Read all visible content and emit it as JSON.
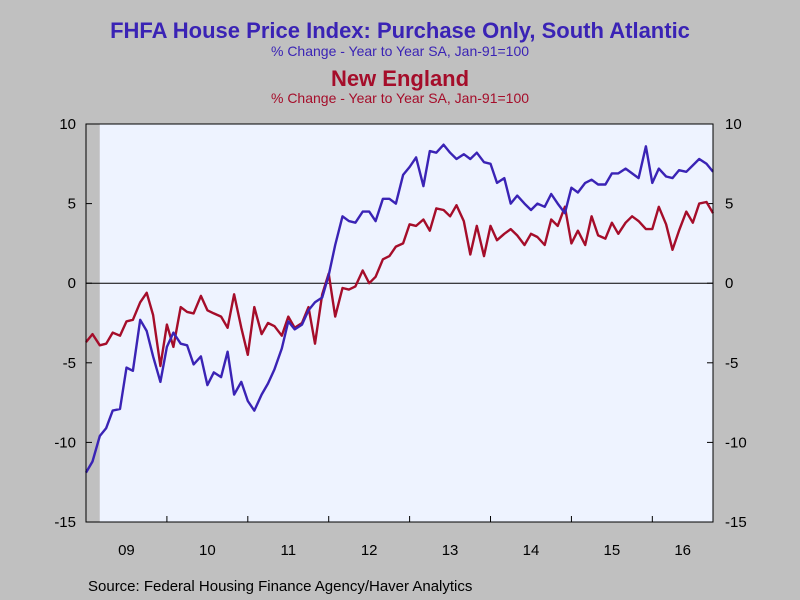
{
  "chart_data": {
    "type": "line",
    "title": "FHFA House Price Index: Purchase Only, South Atlantic",
    "subtitle": "% Change - Year to Year    SA, Jan-91=100",
    "title2": "New England",
    "subtitle2": "% Change - Year to Year    SA, Jan-91=100",
    "source": "Source:  Federal Housing Finance Agency/Haver Analytics",
    "xlabel": "",
    "ylabel": "",
    "ylim": [
      -15,
      10
    ],
    "yticks_left": [
      "10",
      "5",
      "0",
      "-5",
      "-10",
      "-15"
    ],
    "yticks_right": [
      "10",
      "5",
      "0",
      "-5",
      "-10",
      "-15"
    ],
    "ytick_values": [
      10,
      5,
      0,
      -5,
      -10,
      -15
    ],
    "x_tick_labels": [
      "09",
      "10",
      "11",
      "12",
      "13",
      "14",
      "15",
      "16"
    ],
    "x_tick_years": [
      2009,
      2010,
      2011,
      2012,
      2013,
      2014,
      2015,
      2016
    ],
    "xlim": [
      2009.0,
      2016.75
    ],
    "grid": false,
    "zero_line": true,
    "recession_shading": [
      [
        2009.0,
        2009.17
      ]
    ],
    "series": [
      {
        "name": "South Atlantic",
        "color": "#3a23b5",
        "x": [
          2009.0,
          2009.08,
          2009.17,
          2009.25,
          2009.33,
          2009.42,
          2009.5,
          2009.58,
          2009.67,
          2009.75,
          2009.83,
          2009.92,
          2010.0,
          2010.08,
          2010.17,
          2010.25,
          2010.33,
          2010.42,
          2010.5,
          2010.58,
          2010.67,
          2010.75,
          2010.83,
          2010.92,
          2011.0,
          2011.08,
          2011.17,
          2011.25,
          2011.33,
          2011.42,
          2011.5,
          2011.58,
          2011.67,
          2011.75,
          2011.83,
          2011.92,
          2012.0,
          2012.08,
          2012.17,
          2012.25,
          2012.33,
          2012.42,
          2012.5,
          2012.58,
          2012.67,
          2012.75,
          2012.83,
          2012.92,
          2013.0,
          2013.08,
          2013.17,
          2013.25,
          2013.33,
          2013.42,
          2013.5,
          2013.58,
          2013.67,
          2013.75,
          2013.83,
          2013.92,
          2014.0,
          2014.08,
          2014.17,
          2014.25,
          2014.33,
          2014.42,
          2014.5,
          2014.58,
          2014.67,
          2014.75,
          2014.83,
          2014.92,
          2015.0,
          2015.08,
          2015.17,
          2015.25,
          2015.33,
          2015.42,
          2015.5,
          2015.58,
          2015.67,
          2015.75,
          2015.83,
          2015.92,
          2016.0,
          2016.08,
          2016.17,
          2016.25,
          2016.33,
          2016.42,
          2016.5,
          2016.58,
          2016.67,
          2016.75
        ],
        "values": [
          -11.9,
          -11.2,
          -9.6,
          -9.1,
          -8.0,
          -7.9,
          -5.3,
          -5.5,
          -2.3,
          -3.0,
          -4.6,
          -6.2,
          -4.0,
          -3.1,
          -3.8,
          -3.9,
          -5.1,
          -4.6,
          -6.4,
          -5.6,
          -5.9,
          -4.3,
          -7.0,
          -6.2,
          -7.4,
          -8.0,
          -7.0,
          -6.3,
          -5.4,
          -4.1,
          -2.4,
          -2.9,
          -2.6,
          -1.7,
          -1.2,
          -0.9,
          0.5,
          2.4,
          4.2,
          3.9,
          3.8,
          4.5,
          4.5,
          3.9,
          5.3,
          5.3,
          5.0,
          6.8,
          7.3,
          7.9,
          6.1,
          8.3,
          8.2,
          8.7,
          8.2,
          7.8,
          8.1,
          7.8,
          8.2,
          7.6,
          7.5,
          6.3,
          6.6,
          5.0,
          5.5,
          5.0,
          4.6,
          5.0,
          4.8,
          5.6,
          5.0,
          4.4,
          6.0,
          5.7,
          6.3,
          6.5,
          6.2,
          6.2,
          6.9,
          6.9,
          7.2,
          6.9,
          6.6,
          8.6,
          6.3,
          7.2,
          6.7,
          6.6,
          7.1,
          7.0,
          7.4,
          7.8,
          7.5,
          7.0
        ]
      },
      {
        "name": "New England",
        "color": "#a50d2a",
        "x": [
          2009.0,
          2009.08,
          2009.17,
          2009.25,
          2009.33,
          2009.42,
          2009.5,
          2009.58,
          2009.67,
          2009.75,
          2009.83,
          2009.92,
          2010.0,
          2010.08,
          2010.17,
          2010.25,
          2010.33,
          2010.42,
          2010.5,
          2010.58,
          2010.67,
          2010.75,
          2010.83,
          2010.92,
          2011.0,
          2011.08,
          2011.17,
          2011.25,
          2011.33,
          2011.42,
          2011.5,
          2011.58,
          2011.67,
          2011.75,
          2011.83,
          2011.92,
          2012.0,
          2012.08,
          2012.17,
          2012.25,
          2012.33,
          2012.42,
          2012.5,
          2012.58,
          2012.67,
          2012.75,
          2012.83,
          2012.92,
          2013.0,
          2013.08,
          2013.17,
          2013.25,
          2013.33,
          2013.42,
          2013.5,
          2013.58,
          2013.67,
          2013.75,
          2013.83,
          2013.92,
          2014.0,
          2014.08,
          2014.17,
          2014.25,
          2014.33,
          2014.42,
          2014.5,
          2014.58,
          2014.67,
          2014.75,
          2014.83,
          2014.92,
          2015.0,
          2015.08,
          2015.17,
          2015.25,
          2015.33,
          2015.42,
          2015.5,
          2015.58,
          2015.67,
          2015.75,
          2015.83,
          2015.92,
          2016.0,
          2016.08,
          2016.17,
          2016.25,
          2016.33,
          2016.42,
          2016.5,
          2016.58,
          2016.67,
          2016.75
        ],
        "values": [
          -3.7,
          -3.2,
          -3.9,
          -3.8,
          -3.1,
          -3.3,
          -2.4,
          -2.3,
          -1.2,
          -0.6,
          -2.0,
          -5.2,
          -2.6,
          -4.0,
          -1.5,
          -1.8,
          -1.9,
          -0.8,
          -1.7,
          -1.9,
          -2.1,
          -2.8,
          -0.7,
          -2.8,
          -4.5,
          -1.5,
          -3.2,
          -2.5,
          -2.7,
          -3.3,
          -2.1,
          -2.8,
          -2.5,
          -1.5,
          -3.8,
          -0.7,
          0.6,
          -2.1,
          -0.3,
          -0.4,
          -0.2,
          0.8,
          0.0,
          0.4,
          1.5,
          1.7,
          2.3,
          2.5,
          3.7,
          3.6,
          4.0,
          3.3,
          4.7,
          4.6,
          4.2,
          4.9,
          3.9,
          1.8,
          3.6,
          1.7,
          3.6,
          2.7,
          3.1,
          3.4,
          3.0,
          2.4,
          3.1,
          2.9,
          2.4,
          4.0,
          3.6,
          4.8,
          2.5,
          3.3,
          2.4,
          4.2,
          3.0,
          2.8,
          3.8,
          3.1,
          3.8,
          4.2,
          3.9,
          3.4,
          3.4,
          4.8,
          3.7,
          2.1,
          3.3,
          4.5,
          3.8,
          5.0,
          5.1,
          4.4
        ]
      }
    ]
  }
}
